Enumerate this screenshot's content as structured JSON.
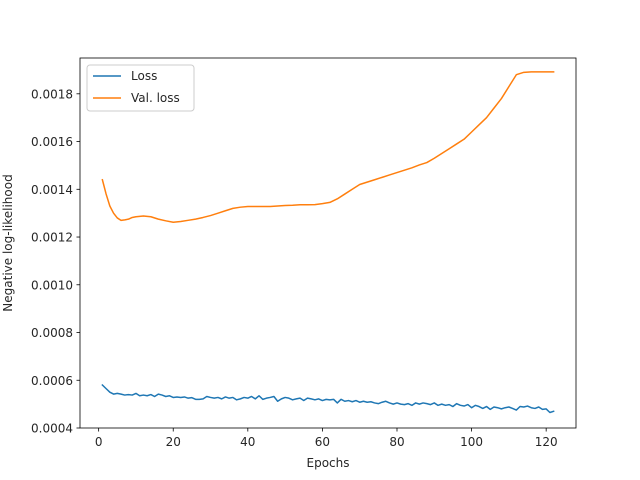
{
  "chart_data": {
    "type": "line",
    "xlabel": "Epochs",
    "ylabel": "Negative log-likelihood",
    "xlim": [
      -5,
      128
    ],
    "ylim": [
      0.0004,
      0.00195
    ],
    "xticks": [
      0,
      20,
      40,
      60,
      80,
      100,
      120
    ],
    "yticks": [
      0.0004,
      0.0006,
      0.0008,
      0.001,
      0.0012,
      0.0014,
      0.0016,
      0.0018
    ],
    "ytick_labels": [
      "0.0004",
      "0.0006",
      "0.0008",
      "0.0010",
      "0.0012",
      "0.0014",
      "0.0016",
      "0.0018"
    ],
    "grid": false,
    "legend_position": "top-left",
    "series": [
      {
        "name": "Loss",
        "color": "#1f77b4",
        "x": [
          1,
          2,
          3,
          4,
          5,
          6,
          7,
          8,
          9,
          10,
          11,
          12,
          13,
          14,
          15,
          16,
          17,
          18,
          19,
          20,
          21,
          22,
          23,
          24,
          25,
          26,
          27,
          28,
          29,
          30,
          31,
          32,
          33,
          34,
          35,
          36,
          37,
          38,
          39,
          40,
          41,
          42,
          43,
          44,
          45,
          46,
          47,
          48,
          49,
          50,
          51,
          52,
          53,
          54,
          55,
          56,
          57,
          58,
          59,
          60,
          61,
          62,
          63,
          64,
          65,
          66,
          67,
          68,
          69,
          70,
          71,
          72,
          73,
          74,
          75,
          76,
          77,
          78,
          79,
          80,
          81,
          82,
          83,
          84,
          85,
          86,
          87,
          88,
          89,
          90,
          91,
          92,
          93,
          94,
          95,
          96,
          97,
          98,
          99,
          100,
          101,
          102,
          103,
          104,
          105,
          106,
          107,
          108,
          109,
          110,
          111,
          112,
          113,
          114,
          115,
          116,
          117,
          118,
          119,
          120,
          121,
          122
        ],
        "y": [
          0.00058,
          0.000565,
          0.00055,
          0.000542,
          0.000545,
          0.000542,
          0.000538,
          0.00054,
          0.000538,
          0.000545,
          0.000535,
          0.000538,
          0.000535,
          0.00054,
          0.000532,
          0.000542,
          0.000538,
          0.000532,
          0.000535,
          0.000528,
          0.00053,
          0.000528,
          0.00053,
          0.000525,
          0.000527,
          0.00052,
          0.00052,
          0.000522,
          0.000532,
          0.000528,
          0.000525,
          0.000528,
          0.000522,
          0.00053,
          0.000525,
          0.000528,
          0.000518,
          0.000522,
          0.000528,
          0.000525,
          0.000532,
          0.000522,
          0.000535,
          0.00052,
          0.000525,
          0.000528,
          0.000532,
          0.000512,
          0.000522,
          0.000528,
          0.000525,
          0.000518,
          0.000522,
          0.000525,
          0.000515,
          0.000525,
          0.000522,
          0.000518,
          0.000522,
          0.000515,
          0.00052,
          0.000518,
          0.00052,
          0.000505,
          0.00052,
          0.000512,
          0.000515,
          0.00051,
          0.000515,
          0.000508,
          0.000512,
          0.000508,
          0.00051,
          0.000505,
          0.000502,
          0.000508,
          0.000512,
          0.000505,
          0.0005,
          0.000505,
          0.0005,
          0.000498,
          0.000502,
          0.000495,
          0.000505,
          0.0005,
          0.000505,
          0.000502,
          0.000498,
          0.000505,
          0.000495,
          0.0005,
          0.000495,
          0.000498,
          0.00049,
          0.000502,
          0.000495,
          0.000492,
          0.000498,
          0.000485,
          0.000495,
          0.00049,
          0.000482,
          0.00049,
          0.000478,
          0.000488,
          0.000485,
          0.00048,
          0.000485,
          0.000488,
          0.000482,
          0.000475,
          0.00049,
          0.000488,
          0.000492,
          0.000485,
          0.000482,
          0.000488,
          0.000478,
          0.00048,
          0.000465,
          0.00047
        ]
      },
      {
        "name": "Val. loss",
        "color": "#ff7f0e",
        "x": [
          1,
          2,
          3,
          4,
          5,
          6,
          7,
          8,
          9,
          10,
          12,
          14,
          16,
          18,
          20,
          22,
          24,
          26,
          28,
          30,
          32,
          34,
          36,
          38,
          40,
          42,
          44,
          46,
          48,
          50,
          52,
          54,
          56,
          58,
          60,
          62,
          64,
          66,
          68,
          70,
          72,
          74,
          76,
          78,
          80,
          82,
          84,
          86,
          88,
          90,
          92,
          94,
          96,
          98,
          100,
          102,
          104,
          106,
          108,
          110,
          112,
          114,
          116,
          118,
          120,
          122
        ],
        "y": [
          0.00144,
          0.00138,
          0.00133,
          0.0013,
          0.00128,
          0.00127,
          0.001272,
          0.001275,
          0.001282,
          0.001285,
          0.001288,
          0.001285,
          0.001275,
          0.001268,
          0.001262,
          0.001265,
          0.00127,
          0.001275,
          0.001282,
          0.00129,
          0.0013,
          0.00131,
          0.00132,
          0.001325,
          0.001328,
          0.001328,
          0.001328,
          0.001328,
          0.00133,
          0.001332,
          0.001333,
          0.001335,
          0.001335,
          0.001336,
          0.00134,
          0.001345,
          0.00136,
          0.00138,
          0.0014,
          0.00142,
          0.00143,
          0.00144,
          0.00145,
          0.00146,
          0.00147,
          0.00148,
          0.00149,
          0.001502,
          0.001512,
          0.00153,
          0.00155,
          0.00157,
          0.00159,
          0.00161,
          0.00164,
          0.00167,
          0.0017,
          0.00174,
          0.00178,
          0.00183,
          0.00188,
          0.00189,
          0.001892,
          0.001892,
          0.001892,
          0.001892
        ]
      }
    ]
  }
}
